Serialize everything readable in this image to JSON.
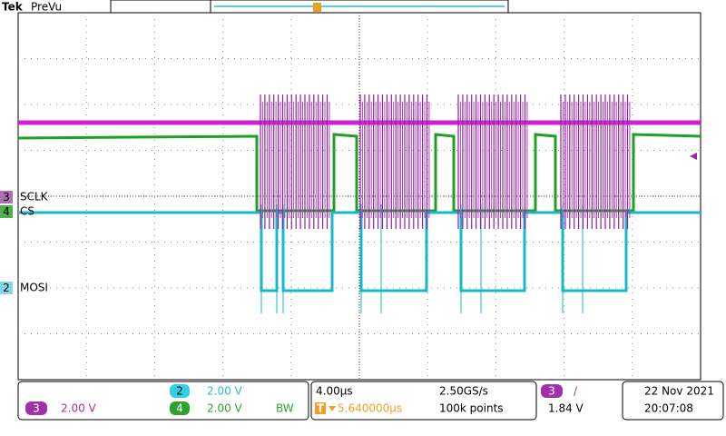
{
  "header": {
    "brand": "Tek",
    "mode": "PreVu"
  },
  "markers": {
    "trigger": "T"
  },
  "channels": [
    {
      "number": "3",
      "label": "SCLK"
    },
    {
      "number": "4",
      "label": "CS"
    },
    {
      "number": "2",
      "label": "MOSI"
    }
  ],
  "status": {
    "ch2": {
      "number": "2",
      "scale": "2.00 V"
    },
    "ch3": {
      "number": "3",
      "scale": "2.00 V"
    },
    "bandwidth": "BW",
    "ch4": {
      "number": "4",
      "scale": "2.00 V"
    },
    "horizontal": {
      "scale": "4.00µs",
      "sample_rate": "2.50GS/s",
      "trigger_icon": "T",
      "delay": "5.640000µs",
      "record": "100k points"
    },
    "trigger": {
      "source": "3",
      "slope": "/",
      "level": "1.84 V"
    },
    "date": "22 Nov 2021",
    "time": "20:07:08"
  }
}
